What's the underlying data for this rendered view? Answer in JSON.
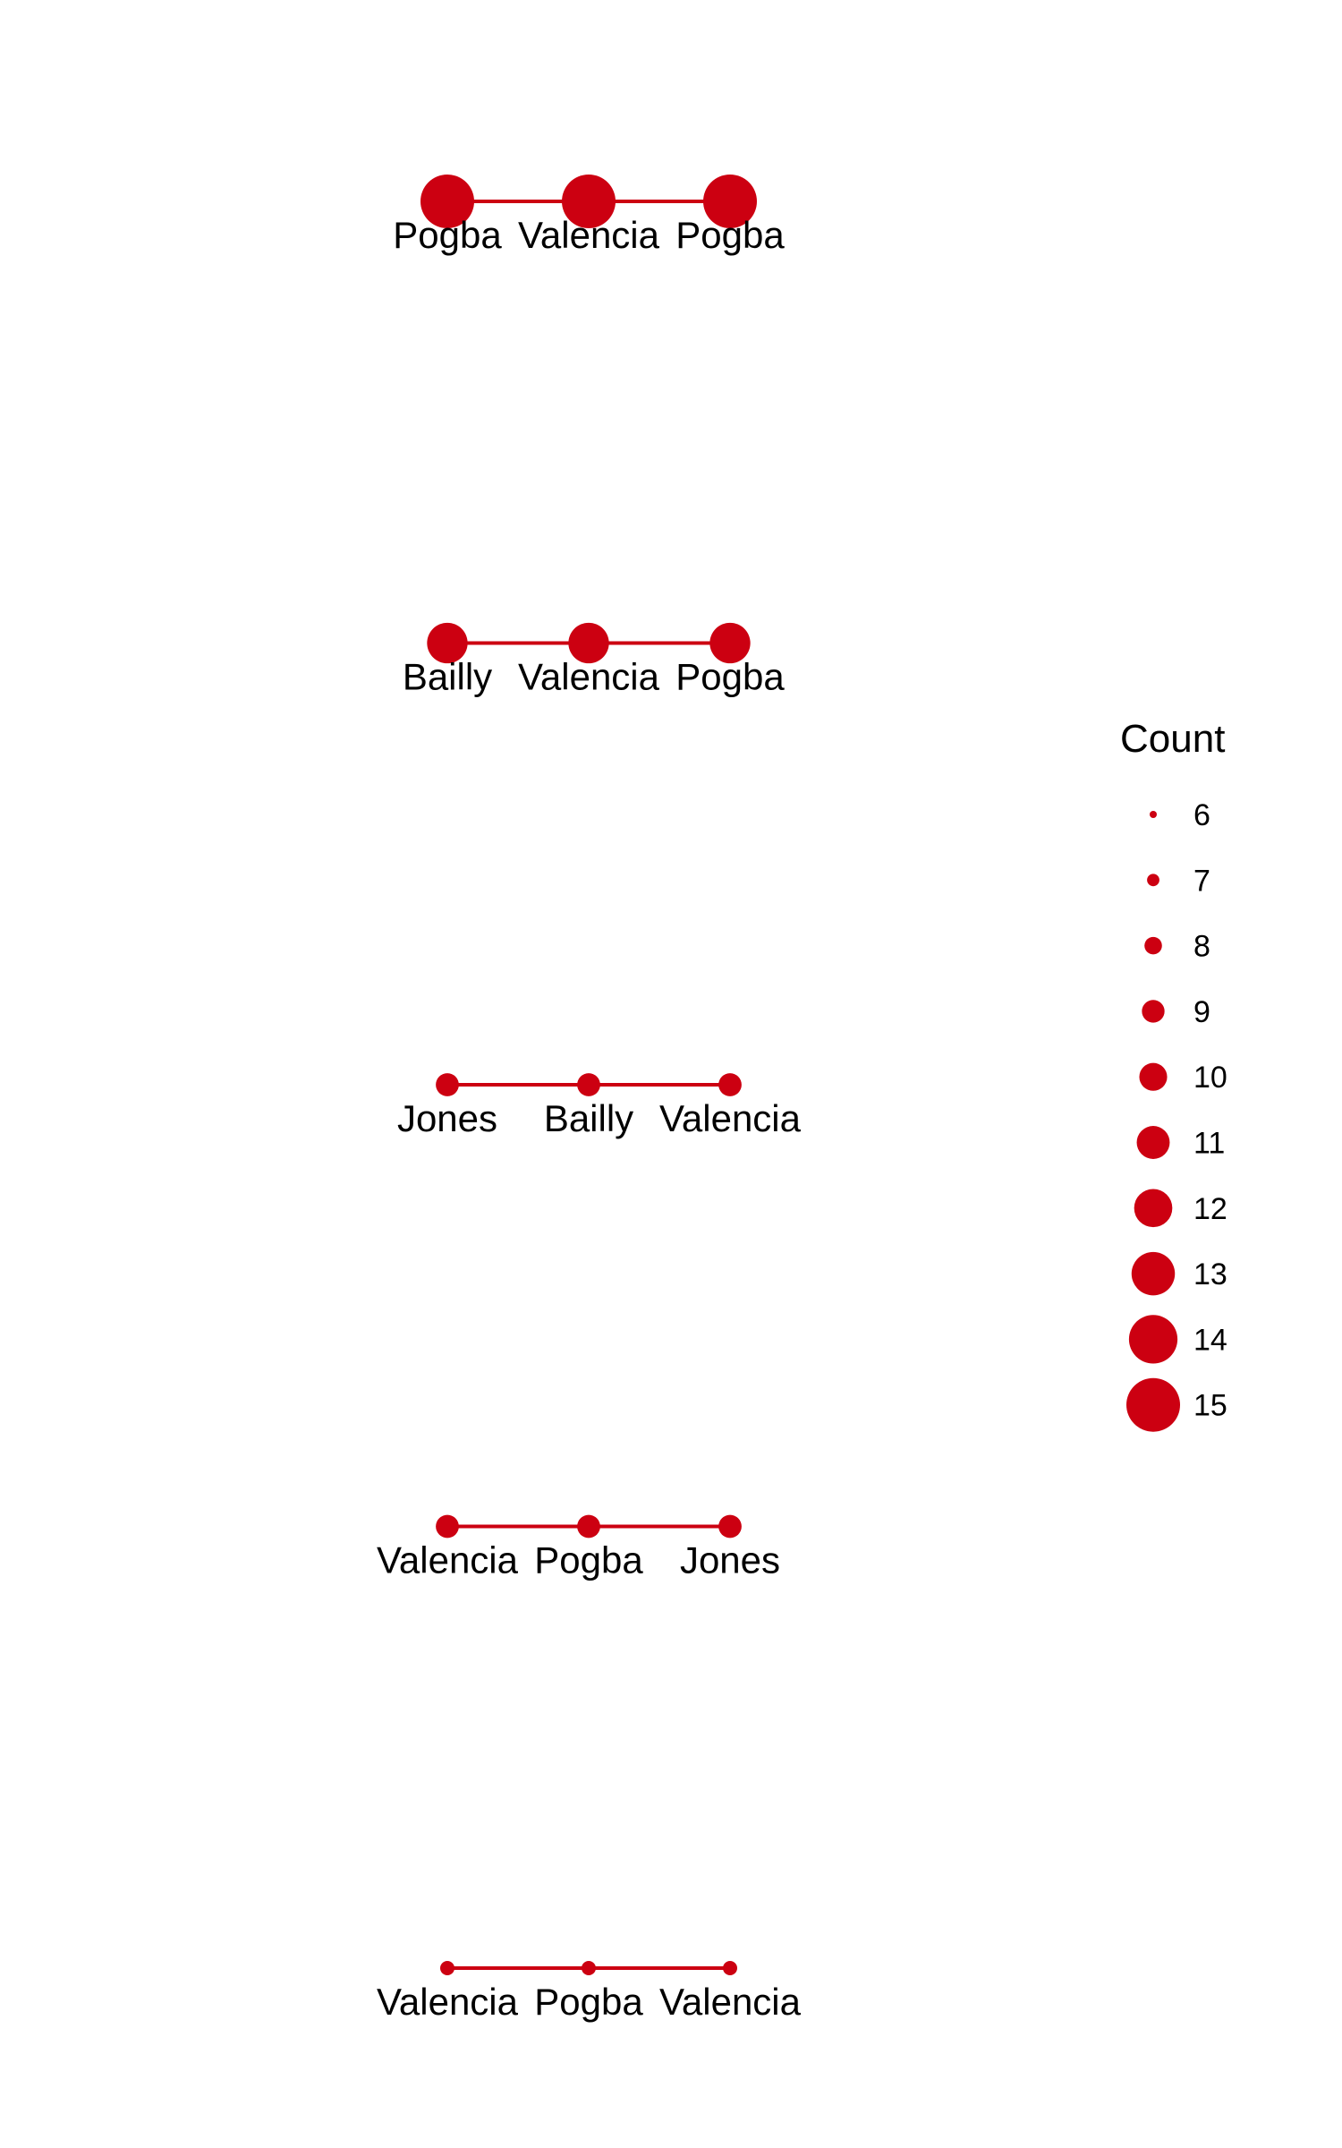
{
  "chart_data": {
    "type": "scatter",
    "color": "#cc0011",
    "sequences": [
      {
        "nodes": [
          "Pogba",
          "Valencia",
          "Pogba"
        ],
        "count": 15
      },
      {
        "nodes": [
          "Bailly",
          "Valencia",
          "Pogba"
        ],
        "count": 12
      },
      {
        "nodes": [
          "Jones",
          "Bailly",
          "Valencia"
        ],
        "count": 8
      },
      {
        "nodes": [
          "Valencia",
          "Pogba",
          "Jones"
        ],
        "count": 8
      },
      {
        "nodes": [
          "Valencia",
          "Pogba",
          "Valencia"
        ],
        "count": 6
      }
    ],
    "legend": {
      "title": "Count",
      "placement": "right",
      "entries": [
        6,
        7,
        8,
        9,
        10,
        11,
        12,
        13,
        14,
        15
      ]
    },
    "grid": false
  }
}
